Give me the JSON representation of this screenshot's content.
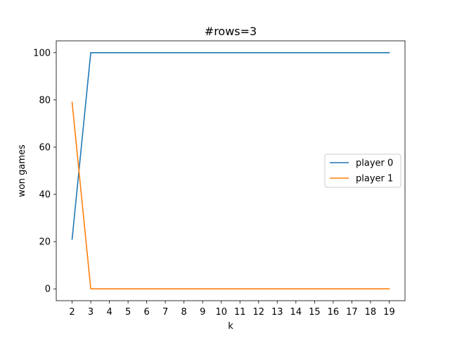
{
  "chart_data": {
    "type": "line",
    "title": "#rows=3",
    "xlabel": "k",
    "ylabel": "won games",
    "x": [
      2,
      3,
      4,
      5,
      6,
      7,
      8,
      9,
      10,
      11,
      12,
      13,
      14,
      15,
      16,
      17,
      18,
      19
    ],
    "xlim": [
      1.15,
      19.85
    ],
    "ylim": [
      -5,
      105
    ],
    "xticks": [
      2,
      3,
      4,
      5,
      6,
      7,
      8,
      9,
      10,
      11,
      12,
      13,
      14,
      15,
      16,
      17,
      18,
      19
    ],
    "yticks": [
      0,
      20,
      40,
      60,
      80,
      100
    ],
    "grid": false,
    "legend_position": "center-right",
    "series": [
      {
        "name": "player 0",
        "color": "#1f77b4",
        "values": [
          21,
          100,
          100,
          100,
          100,
          100,
          100,
          100,
          100,
          100,
          100,
          100,
          100,
          100,
          100,
          100,
          100,
          100
        ]
      },
      {
        "name": "player 1",
        "color": "#ff7f0e",
        "values": [
          79,
          0,
          0,
          0,
          0,
          0,
          0,
          0,
          0,
          0,
          0,
          0,
          0,
          0,
          0,
          0,
          0,
          0
        ]
      }
    ]
  }
}
